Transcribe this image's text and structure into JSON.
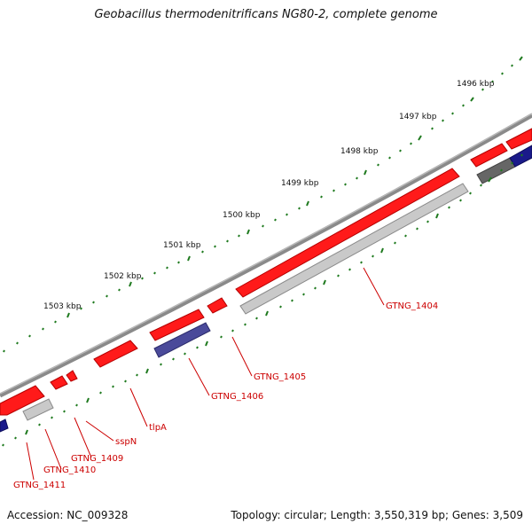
{
  "title": "Geobacillus thermodenitrificans NG80-2, complete genome",
  "footer": {
    "accession": "Accession: NC_009328",
    "summary": "Topology: circular; Length: 3,550,319 bp; Genes: 3,509"
  },
  "colors": {
    "background": "#ffffff",
    "backbone": "#8a8a8a",
    "gene_forward": "#ff1a1a",
    "gene_forward_dark": "#b30000",
    "gene_reverse_gray": "#c9c9c9",
    "gene_reverse_blue": "#4a4a9a",
    "gene_dark": "#666666",
    "gene_navy": "#1a1a8a",
    "tick": "#1f7a1f",
    "label_gene": "#cc0000",
    "label_scale": "#111111"
  },
  "scale_labels": [
    "1496 kbp",
    "1497 kbp",
    "1498 kbp",
    "1499 kbp",
    "1500 kbp",
    "1501 kbp",
    "1502 kbp",
    "1503 kbp"
  ],
  "gene_labels": [
    "GTNG_1404",
    "GTNG_1405",
    "GTNG_1406",
    "tlpA",
    "sspN",
    "GTNG_1409",
    "GTNG_1410",
    "GTNG_1411"
  ]
}
